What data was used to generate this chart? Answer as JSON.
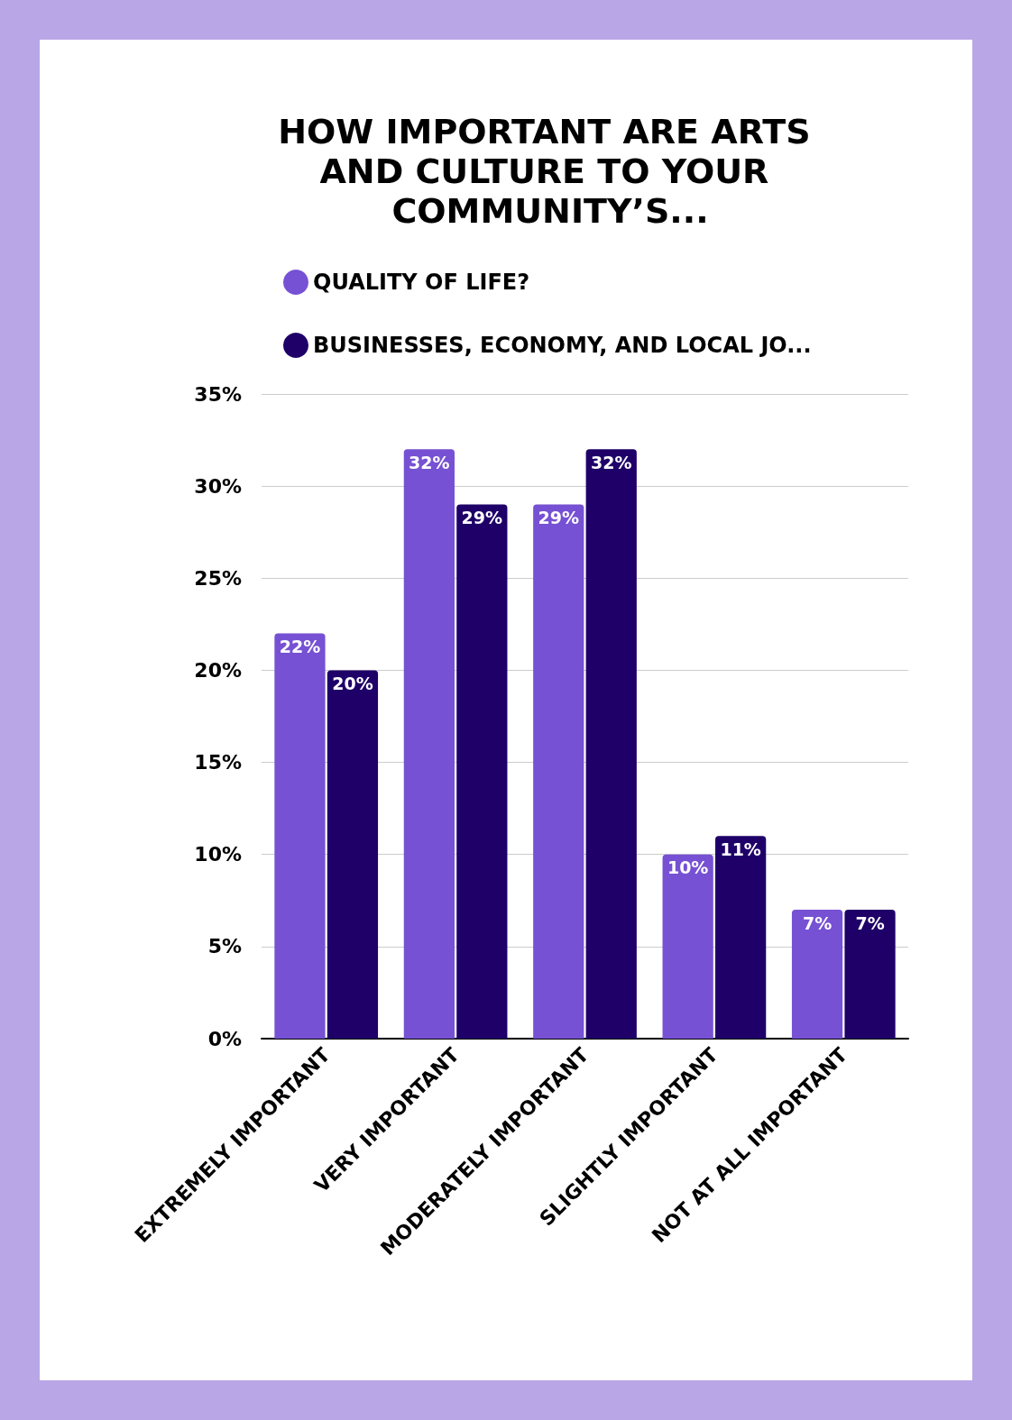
{
  "chart_data": {
    "type": "bar",
    "title": "HOW IMPORTANT ARE ARTS AND CULTURE TO YOUR COMMUNITY’S...",
    "categories": [
      "EXTREMELY IMPORTANT",
      "VERY IMPORTANT",
      "MODERATELY IMPORTANT",
      "SLIGHTLY IMPORTANT",
      "NOT AT ALL IMPORTANT"
    ],
    "series": [
      {
        "name": "QUALITY OF LIFE?",
        "color": "#7651d3",
        "values": [
          22,
          32,
          29,
          10,
          7
        ],
        "value_labels": [
          "22%",
          "32%",
          "29%",
          "10%",
          "7%"
        ]
      },
      {
        "name": "BUSINESSES, ECONOMY, AND LOCAL JO...",
        "color": "#1e0068",
        "values": [
          20,
          29,
          32,
          11,
          7
        ],
        "value_labels": [
          "20%",
          "29%",
          "32%",
          "11%",
          "7%"
        ]
      }
    ],
    "ylim": [
      0,
      35
    ],
    "yticks": [
      {
        "value": 0,
        "label": "0%"
      },
      {
        "value": 5,
        "label": "5%"
      },
      {
        "value": 10,
        "label": "10%"
      },
      {
        "value": 15,
        "label": "15%"
      },
      {
        "value": 20,
        "label": "20%"
      },
      {
        "value": 25,
        "label": "25%"
      },
      {
        "value": 30,
        "label": "30%"
      },
      {
        "value": 35,
        "label": "35%"
      }
    ],
    "grid": "y",
    "legend": "top left"
  }
}
